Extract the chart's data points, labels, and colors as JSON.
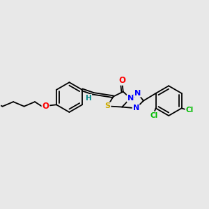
{
  "bg_color": "#e8e8e8",
  "bond_color": "#000000",
  "atom_colors": {
    "O": "#ff0000",
    "N": "#0000ff",
    "S": "#ccaa00",
    "Cl": "#00bb00",
    "H": "#008888",
    "C": "#000000"
  },
  "figsize": [
    3.0,
    3.0
  ],
  "dpi": 100
}
